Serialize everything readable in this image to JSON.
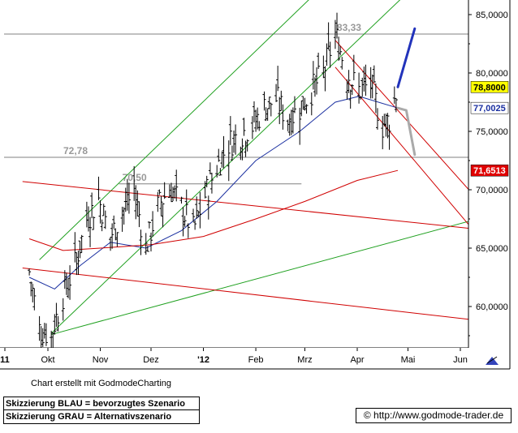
{
  "chart_data": {
    "type": "candlestick",
    "x_ticks": [
      "11",
      "Okt",
      "Nov",
      "Dez",
      "'12",
      "Feb",
      "Mrz",
      "Apr",
      "Mai",
      "Jun"
    ],
    "y_ticks": [
      "60,0000",
      "65,0000",
      "70,0000",
      "75,0000",
      "80,0000",
      "85,0000"
    ],
    "ylim": [
      57.5,
      86.5
    ],
    "grid": "horizontal levels only",
    "levels": [
      {
        "label": "83,33",
        "value": 83.33
      },
      {
        "label": "72,78",
        "value": 72.78
      },
      {
        "label": "70,50",
        "value": 70.5
      }
    ],
    "price_boxes": [
      {
        "label": "78,8000",
        "value": 78.8,
        "bg": "#ffff00",
        "fg": "#000000"
      },
      {
        "label": "77,0025",
        "value": 77.0025,
        "bg": "#ffffff",
        "fg": "#1a2fa0"
      },
      {
        "label": "71,6513",
        "value": 71.6513,
        "bg": "#e00000",
        "fg": "#ffffff"
      }
    ],
    "ohlc_close_path": [
      {
        "date": "2011-09-20",
        "close": 63.0
      },
      {
        "date": "2011-09-26",
        "close": 58.0
      },
      {
        "date": "2011-10-03",
        "close": 57.6
      },
      {
        "date": "2011-10-10",
        "close": 61.0
      },
      {
        "date": "2011-10-17",
        "close": 63.5
      },
      {
        "date": "2011-10-24",
        "close": 67.5
      },
      {
        "date": "2011-10-31",
        "close": 69.2
      },
      {
        "date": "2011-11-07",
        "close": 66.0
      },
      {
        "date": "2011-11-14",
        "close": 68.0
      },
      {
        "date": "2011-11-21",
        "close": 70.0
      },
      {
        "date": "2011-11-28",
        "close": 65.0
      },
      {
        "date": "2011-12-05",
        "close": 68.5
      },
      {
        "date": "2011-12-12",
        "close": 70.2
      },
      {
        "date": "2011-12-19",
        "close": 68.5
      },
      {
        "date": "2011-12-26",
        "close": 66.5
      },
      {
        "date": "2012-01-02",
        "close": 69.5
      },
      {
        "date": "2012-01-09",
        "close": 72.0
      },
      {
        "date": "2012-01-16",
        "close": 74.0
      },
      {
        "date": "2012-01-23",
        "close": 74.8
      },
      {
        "date": "2012-01-30",
        "close": 75.5
      },
      {
        "date": "2012-02-06",
        "close": 77.0
      },
      {
        "date": "2012-02-13",
        "close": 77.8
      },
      {
        "date": "2012-02-20",
        "close": 76.0
      },
      {
        "date": "2012-02-27",
        "close": 77.0
      },
      {
        "date": "2012-03-05",
        "close": 78.5
      },
      {
        "date": "2012-03-12",
        "close": 80.0
      },
      {
        "date": "2012-03-19",
        "close": 83.33
      },
      {
        "date": "2012-03-26",
        "close": 80.0
      },
      {
        "date": "2012-04-02",
        "close": 78.5
      },
      {
        "date": "2012-04-09",
        "close": 79.0
      },
      {
        "date": "2012-04-16",
        "close": 75.5
      },
      {
        "date": "2012-04-20",
        "close": 76.0
      },
      {
        "date": "2012-04-25",
        "close": 78.8
      }
    ],
    "moving_averages": [
      {
        "color": "#1a2fa0",
        "points": [
          {
            "date": "2011-09-20",
            "value": 62.5
          },
          {
            "date": "2011-10-05",
            "value": 61.5
          },
          {
            "date": "2011-10-20",
            "value": 63.5
          },
          {
            "date": "2011-11-07",
            "value": 65.5
          },
          {
            "date": "2011-11-28",
            "value": 65.0
          },
          {
            "date": "2011-12-19",
            "value": 66.5
          },
          {
            "date": "2012-01-09",
            "value": 69.0
          },
          {
            "date": "2012-02-01",
            "value": 72.5
          },
          {
            "date": "2012-02-27",
            "value": 75.0
          },
          {
            "date": "2012-03-19",
            "value": 77.5
          },
          {
            "date": "2012-04-02",
            "value": 78.0
          },
          {
            "date": "2012-04-25",
            "value": 77.0
          }
        ]
      },
      {
        "color": "#d00000",
        "points": [
          {
            "date": "2011-09-20",
            "value": 65.8
          },
          {
            "date": "2011-10-10",
            "value": 64.8
          },
          {
            "date": "2011-11-01",
            "value": 65.0
          },
          {
            "date": "2011-12-01",
            "value": 65.3
          },
          {
            "date": "2012-01-01",
            "value": 66.0
          },
          {
            "date": "2012-02-01",
            "value": 67.5
          },
          {
            "date": "2012-03-01",
            "value": 69.0
          },
          {
            "date": "2012-04-01",
            "value": 70.8
          },
          {
            "date": "2012-04-25",
            "value": 71.65
          }
        ]
      }
    ],
    "trendlines": [
      {
        "color": "#1fa01f",
        "from": {
          "date": "2011-09-26",
          "value": 64.0
        },
        "to": {
          "date": "2012-03-05",
          "value": 86.5
        }
      },
      {
        "color": "#1fa01f",
        "from": {
          "date": "2011-10-03",
          "value": 57.7
        },
        "to": {
          "date": "2012-04-28",
          "value": 86.5
        }
      },
      {
        "color": "#1fa01f",
        "from": {
          "date": "2011-10-03",
          "value": 57.6
        },
        "to": {
          "date": "2012-06-06",
          "value": 67.3
        }
      },
      {
        "color": "#d00000",
        "from": {
          "date": "2011-09-16",
          "value": 70.7
        },
        "to": {
          "date": "2012-06-06",
          "value": 66.7
        }
      },
      {
        "color": "#d00000",
        "from": {
          "date": "2011-09-16",
          "value": 63.3
        },
        "to": {
          "date": "2012-06-06",
          "value": 58.9
        }
      },
      {
        "color": "#d00000",
        "from": {
          "date": "2012-03-19",
          "value": 82.8
        },
        "to": {
          "date": "2012-06-06",
          "value": 70.0
        }
      },
      {
        "color": "#d00000",
        "from": {
          "date": "2012-03-19",
          "value": 80.5
        },
        "to": {
          "date": "2012-06-06",
          "value": 67.0
        }
      }
    ],
    "scenario_arrows": [
      {
        "color": "#2233bb",
        "points": [
          {
            "date": "2012-04-25",
            "value": 78.8
          },
          {
            "date": "2012-05-05",
            "value": 83.8
          }
        ]
      },
      {
        "color": "#aaaaaa",
        "points": [
          {
            "date": "2012-04-25",
            "value": 77.0
          },
          {
            "date": "2012-04-30",
            "value": 76.8
          },
          {
            "date": "2012-05-05",
            "value": 73.0
          }
        ]
      }
    ]
  },
  "footer": {
    "credit": "Chart erstellt mit GodmodeCharting",
    "legend_line1": "Skizzierung BLAU = bevorzugtes Szenario",
    "legend_line2": "Skizzierung GRAU = Alternativszenario",
    "url": "© http://www.godmode-trader.de"
  },
  "colors": {
    "axis": "#000000",
    "level": "#808080",
    "green": "#1fa01f",
    "red": "#d00000",
    "blue": "#1a2fa0"
  }
}
